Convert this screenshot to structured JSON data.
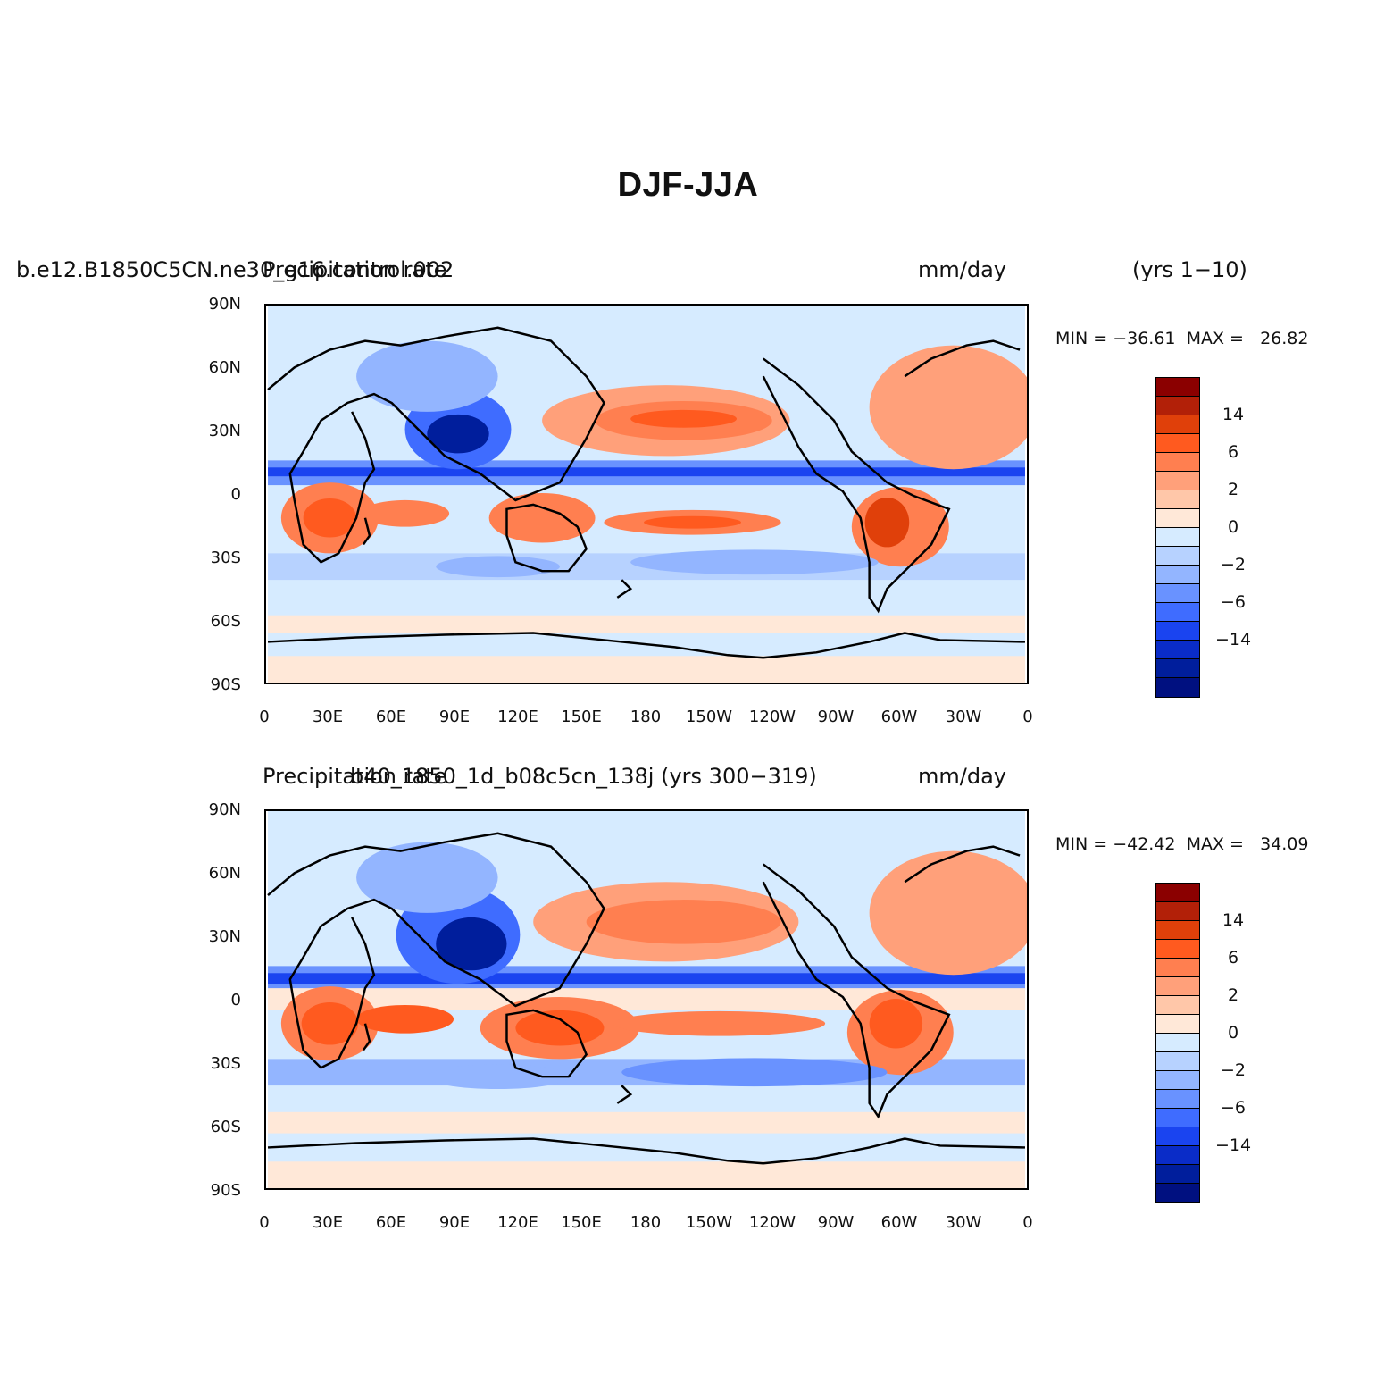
{
  "title": "DJF-JJA",
  "panels": [
    {
      "case_name": "b.e12.B1850C5CN.ne30_g16.control.002",
      "variable": "Precipitation rate",
      "units": "mm/day",
      "years": "(yrs  1−10)",
      "min_max": "MIN = −36.61  MAX =   26.82"
    },
    {
      "case_name": "b40_1850_1d_b08c5cn_138j (yrs 300−319)",
      "variable": "Precipitation rate",
      "units": "mm/day",
      "years": "",
      "min_max": "MIN = −42.42  MAX =   34.09"
    }
  ],
  "axes": {
    "lat_labels": [
      "90N",
      "60N",
      "30N",
      "0",
      "30S",
      "60S",
      "90S"
    ],
    "lon_labels": [
      "0",
      "30E",
      "60E",
      "90E",
      "120E",
      "150E",
      "180",
      "150W",
      "120W",
      "90W",
      "60W",
      "30W",
      "0"
    ]
  },
  "colorbar": {
    "labels": [
      "14",
      "6",
      "2",
      "0",
      "−2",
      "−6",
      "−14"
    ],
    "colors": [
      "#8b0000",
      "#b22008",
      "#e0400a",
      "#ff5a1f",
      "#ff7f50",
      "#ffa07a",
      "#ffc7a9",
      "#ffe8d8",
      "#d6ebff",
      "#b7d2ff",
      "#93b5ff",
      "#6992ff",
      "#3f6cff",
      "#1a44f0",
      "#0a2cc8",
      "#001e9c",
      "#001080"
    ]
  },
  "legend_colors": {
    "land_outline": "#000000",
    "background_field": "#d6ebff"
  }
}
